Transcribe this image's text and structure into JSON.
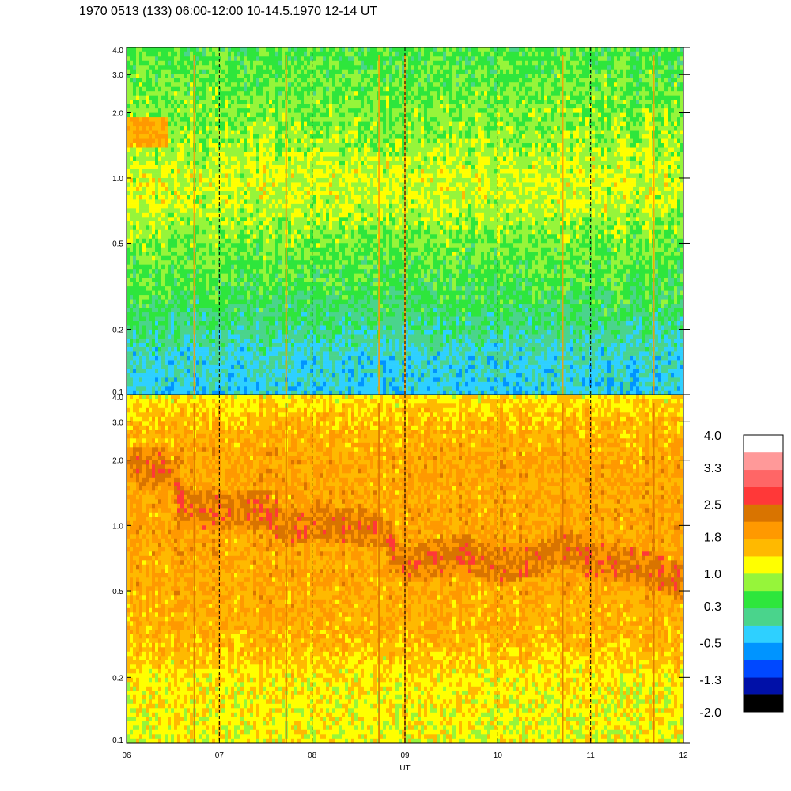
{
  "title": "1970 0513 (133) 06:00-12:00 10-14.5.1970  12-14 UT",
  "colors": {
    "palette": [
      "#000000",
      "#0010a8",
      "#0048ff",
      "#0094ff",
      "#2ed0ff",
      "#4ad48c",
      "#2ee63c",
      "#96f53a",
      "#ffff00",
      "#ffb900",
      "#ff9900",
      "#d97400",
      "#ff3838",
      "#ff6666",
      "#ff9999",
      "#ffffff"
    ],
    "rule": "#000000"
  },
  "chart_data": [
    {
      "type": "heatmap",
      "panel": "upper",
      "xlabel": "",
      "ylabel": "",
      "x_range": [
        6,
        12
      ],
      "ylim": [
        0.1,
        4.0
      ],
      "y_scale": "log",
      "y_ticks": [
        "4.0",
        "3.0",
        "2.0",
        "1.0",
        "0.5",
        "0.2",
        "0.1"
      ],
      "y_tick_values": [
        4.0,
        3.0,
        2.0,
        1.0,
        0.5,
        0.2,
        0.1
      ],
      "dashed_hour_lines": [
        7,
        8,
        9,
        10,
        11
      ],
      "intensity_profile": [
        {
          "freq": 0.1,
          "level": 4.0
        },
        {
          "freq": 0.15,
          "level": 4.3
        },
        {
          "freq": 0.2,
          "level": 5.1
        },
        {
          "freq": 0.3,
          "level": 5.9
        },
        {
          "freq": 0.5,
          "level": 6.6
        },
        {
          "freq": 0.8,
          "level": 7.5
        },
        {
          "freq": 1.0,
          "level": 7.6
        },
        {
          "freq": 1.5,
          "level": 7.0
        },
        {
          "freq": 2.5,
          "level": 6.5
        },
        {
          "freq": 4.0,
          "level": 6.1
        }
      ],
      "band_events": [
        {
          "t_start": 6.0,
          "t_end": 6.45,
          "freq_center": 1.6,
          "level": 9.3
        }
      ]
    },
    {
      "type": "heatmap",
      "panel": "lower",
      "xlabel": "UT",
      "ylabel": "",
      "x_range": [
        6,
        12
      ],
      "x_ticks": [
        "06",
        "07",
        "08",
        "09",
        "10",
        "11",
        "12"
      ],
      "x_tick_values": [
        6,
        7,
        8,
        9,
        10,
        11,
        12
      ],
      "ylim": [
        0.1,
        4.0
      ],
      "y_scale": "log",
      "y_ticks": [
        "4.0",
        "3.0",
        "2.0",
        "1.0",
        "0.5",
        "0.2",
        "0.1"
      ],
      "y_tick_values": [
        4.0,
        3.0,
        2.0,
        1.0,
        0.5,
        0.2,
        0.1
      ],
      "dashed_hour_lines": [
        7,
        8,
        9,
        10,
        11
      ],
      "intensity_profile": [
        {
          "freq": 0.1,
          "level": 7.9
        },
        {
          "freq": 0.15,
          "level": 8.1
        },
        {
          "freq": 0.2,
          "level": 8.3
        },
        {
          "freq": 0.3,
          "level": 9.2
        },
        {
          "freq": 0.5,
          "level": 9.5
        },
        {
          "freq": 1.0,
          "level": 9.7
        },
        {
          "freq": 2.0,
          "level": 9.6
        },
        {
          "freq": 3.0,
          "level": 9.1
        },
        {
          "freq": 4.0,
          "level": 8.3
        }
      ],
      "dark_band": [
        {
          "t": 6.0,
          "freq": 1.9
        },
        {
          "t": 6.45,
          "freq": 1.85
        },
        {
          "t": 6.6,
          "freq": 1.25
        },
        {
          "t": 7.0,
          "freq": 1.15
        },
        {
          "t": 7.5,
          "freq": 1.2
        },
        {
          "t": 7.75,
          "freq": 0.95
        },
        {
          "t": 8.0,
          "freq": 1.05
        },
        {
          "t": 8.75,
          "freq": 0.95
        },
        {
          "t": 9.0,
          "freq": 0.65
        },
        {
          "t": 9.6,
          "freq": 0.75
        },
        {
          "t": 10.0,
          "freq": 0.65
        },
        {
          "t": 10.5,
          "freq": 0.72
        },
        {
          "t": 10.7,
          "freq": 0.82
        },
        {
          "t": 11.0,
          "freq": 0.7
        },
        {
          "t": 11.5,
          "freq": 0.65
        },
        {
          "t": 12.0,
          "freq": 0.55
        }
      ]
    },
    {
      "type": "colorbar",
      "labels": [
        "4.0",
        "3.3",
        "2.5",
        "1.8",
        "1.0",
        "0.3",
        "-0.5",
        "-1.3",
        "-2.0"
      ],
      "label_values": [
        4.0,
        3.3,
        2.5,
        1.8,
        1.0,
        0.3,
        -0.5,
        -1.3,
        -2.0
      ],
      "vmin": -2.0,
      "vmax": 4.0,
      "levels": 16
    }
  ],
  "interference_lines": [
    {
      "t": 6.73
    },
    {
      "t": 7.72
    },
    {
      "t": 8.72
    },
    {
      "t": 9.0
    },
    {
      "t": 10.7
    },
    {
      "t": 11.68
    }
  ]
}
